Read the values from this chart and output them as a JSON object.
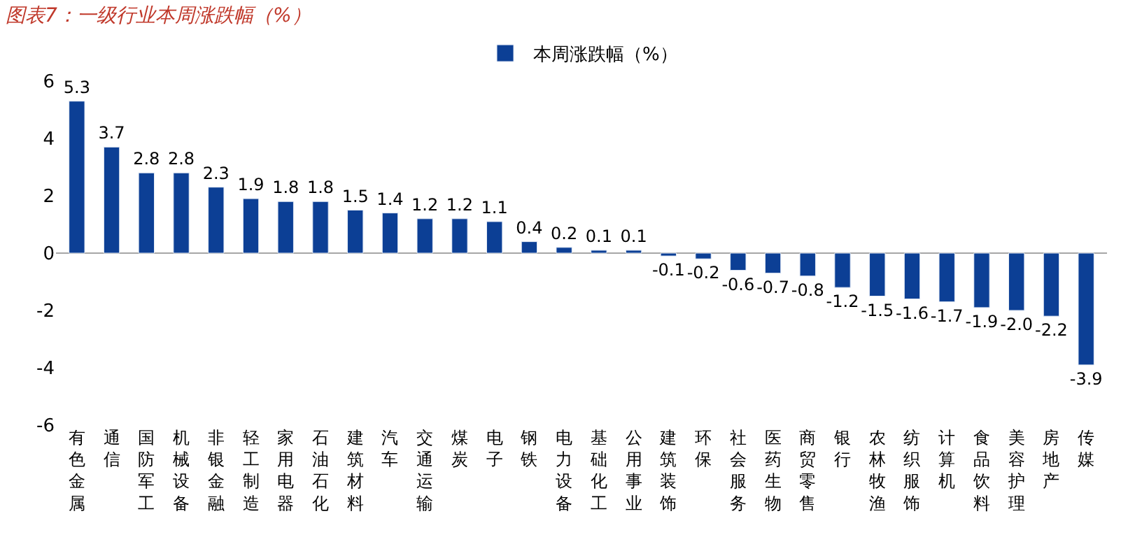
{
  "chart_data": {
    "type": "bar",
    "title": "图表7：一级行业本周涨跌幅（%）",
    "categories": [
      "有色金属",
      "通信",
      "国防军工",
      "机械设备",
      "非银金融",
      "轻工制造",
      "家用电器",
      "石油石化",
      "建筑材料",
      "汽车",
      "交通运输",
      "煤炭",
      "电子",
      "钢铁",
      "电力设备",
      "基础化工",
      "公用事业",
      "建筑装饰",
      "环保",
      "社会服务",
      "医药生物",
      "商贸零售",
      "银行",
      "农林牧渔",
      "纺织服饰",
      "计算机",
      "食品饮料",
      "美容护理",
      "房地产",
      "传媒"
    ],
    "series": [
      {
        "name": "本周涨跌幅（%）",
        "color": "#0c3f95",
        "values": [
          5.3,
          3.7,
          2.8,
          2.8,
          2.3,
          1.9,
          1.8,
          1.8,
          1.5,
          1.4,
          1.2,
          1.2,
          1.1,
          0.4,
          0.2,
          0.1,
          0.1,
          -0.1,
          -0.2,
          -0.6,
          -0.7,
          -0.8,
          -1.2,
          -1.5,
          -1.6,
          -1.7,
          -1.9,
          -2.0,
          -2.2,
          -3.9
        ]
      }
    ],
    "value_labels": [
      "5.3",
      "3.7",
      "2.8",
      "2.8",
      "2.3",
      "1.9",
      "1.8",
      "1.8",
      "1.5",
      "1.4",
      "1.2",
      "1.2",
      "1.1",
      "0.4",
      "0.2",
      "0.1",
      "0.1",
      "-0.1",
      "-0.2",
      "-0.6",
      "-0.7",
      "-0.8",
      "-1.2",
      "-1.5",
      "-1.6",
      "-1.7",
      "-1.9",
      "-2.0",
      "-2.2",
      "-3.9"
    ],
    "ylim": [
      -6,
      6
    ],
    "yticks": [
      -6,
      -4,
      -2,
      0,
      2,
      4,
      6
    ],
    "legend": "top"
  }
}
